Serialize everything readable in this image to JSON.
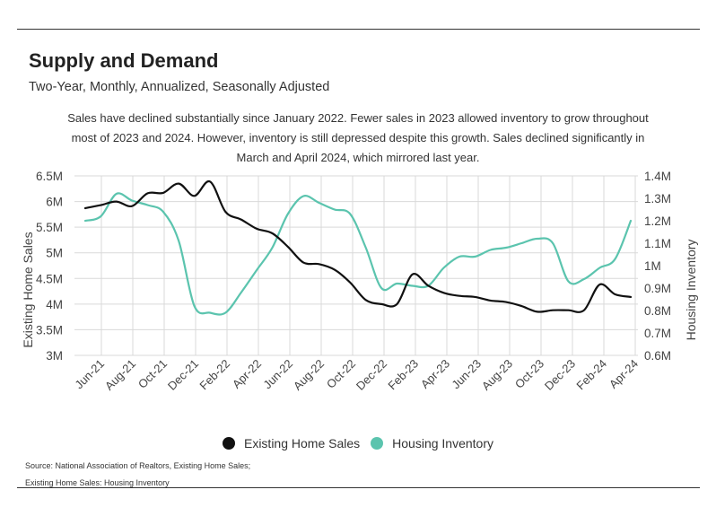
{
  "header": {
    "title": "Supply and Demand",
    "subtitle": "Two-Year, Monthly, Annualized, Seasonally Adjusted",
    "description": "Sales have declined substantially since January 2022. Fewer sales in 2023 allowed inventory to grow throughout most of 2023 and 2024. However, inventory is still depressed despite this growth. Sales declined significantly in March and April 2024, which mirrored last year."
  },
  "legend": {
    "items": [
      {
        "label": "Existing Home Sales",
        "color": "#111111"
      },
      {
        "label": "Housing Inventory",
        "color": "#5bc4ae"
      }
    ]
  },
  "footer": {
    "source_line1": "Source:  National Association of Realtors, Existing Home Sales;",
    "source_line2": "Existing Home Sales: Housing Inventory"
  },
  "chart_data": {
    "type": "line",
    "title": "Supply and Demand",
    "subtitle": "Two-Year, Monthly, Annualized, Seasonally Adjusted",
    "ylabel": "Existing Home Sales",
    "y2label": "Housing Inventory",
    "ylim": [
      3000000,
      6500000
    ],
    "y2lim": [
      600000,
      1400000
    ],
    "y_ticks": [
      "6.5M",
      "6M",
      "5.5M",
      "5M",
      "4.5M",
      "4M",
      "3.5M",
      "3M"
    ],
    "y2_ticks": [
      "1.4M",
      "1.3M",
      "1.2M",
      "1.1M",
      "1M",
      "0.9M",
      "0.8M",
      "0.7M",
      "0.6M"
    ],
    "x_tick_labels": [
      "Jun-21",
      "Aug-21",
      "Oct-21",
      "Dec-21",
      "Feb-22",
      "Apr-22",
      "Jun-22",
      "Aug-22",
      "Oct-22",
      "Dec-22",
      "Feb-23",
      "Apr-23",
      "Jun-23",
      "Aug-23",
      "Oct-23",
      "Dec-23",
      "Feb-24",
      "Apr-24"
    ],
    "x": [
      "May-21",
      "Jun-21",
      "Jul-21",
      "Aug-21",
      "Sep-21",
      "Oct-21",
      "Nov-21",
      "Dec-21",
      "Jan-22",
      "Feb-22",
      "Mar-22",
      "Apr-22",
      "May-22",
      "Jun-22",
      "Jul-22",
      "Aug-22",
      "Sep-22",
      "Oct-22",
      "Nov-22",
      "Dec-22",
      "Jan-23",
      "Feb-23",
      "Mar-23",
      "Apr-23",
      "May-23",
      "Jun-23",
      "Jul-23",
      "Aug-23",
      "Sep-23",
      "Oct-23",
      "Nov-23",
      "Dec-23",
      "Jan-24",
      "Feb-24",
      "Mar-24",
      "Apr-24"
    ],
    "series": [
      {
        "name": "Existing Home Sales",
        "axis": "left",
        "color": "#111111",
        "values": [
          5870000,
          5930000,
          6000000,
          5910000,
          6160000,
          6170000,
          6350000,
          6110000,
          6390000,
          5800000,
          5650000,
          5470000,
          5380000,
          5120000,
          4810000,
          4780000,
          4670000,
          4420000,
          4080000,
          4000000,
          4000000,
          4580000,
          4360000,
          4220000,
          4160000,
          4140000,
          4070000,
          4040000,
          3960000,
          3850000,
          3880000,
          3880000,
          3880000,
          4380000,
          4190000,
          4140000
        ]
      },
      {
        "name": "Housing Inventory",
        "axis": "right",
        "color": "#5bc4ae",
        "values": [
          1200000,
          1220000,
          1320000,
          1290000,
          1270000,
          1240000,
          1110000,
          820000,
          790000,
          790000,
          880000,
          980000,
          1080000,
          1230000,
          1310000,
          1280000,
          1250000,
          1230000,
          1080000,
          900000,
          920000,
          910000,
          910000,
          990000,
          1040000,
          1040000,
          1070000,
          1080000,
          1100000,
          1120000,
          1100000,
          930000,
          940000,
          990000,
          1030000,
          1200000
        ]
      }
    ],
    "grid": true,
    "legend_position": "bottom"
  }
}
